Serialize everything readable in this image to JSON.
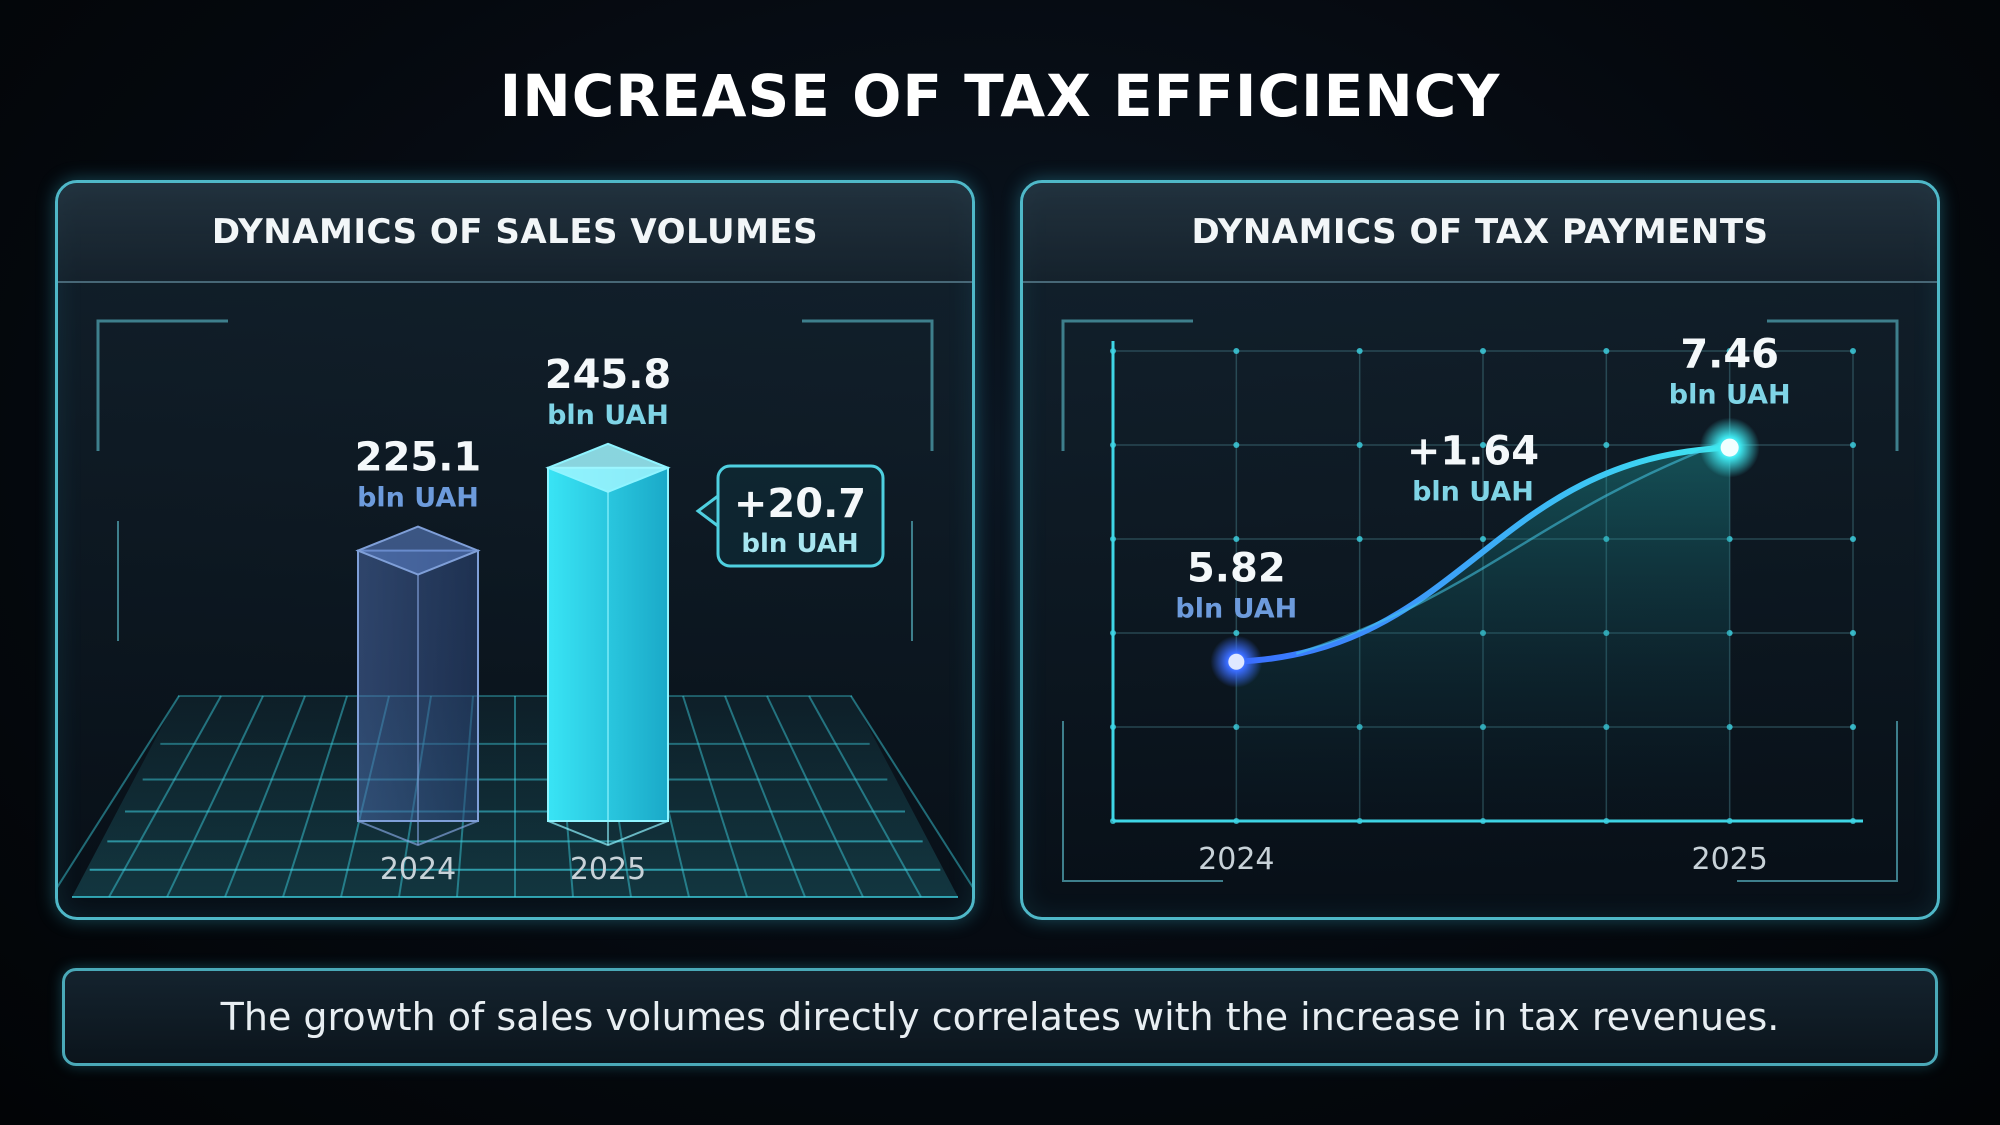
{
  "title": "INCREASE OF TAX EFFICIENCY",
  "footer": "The growth of sales volumes directly correlates with the increase in tax revenues.",
  "colors": {
    "accent": "#3fd6e6",
    "line": "#3a8dff",
    "bar2025": "#2fd2e8",
    "bar2024": "#5a7fb8",
    "text_cyan": "#7fd4e6",
    "text_blue": "#6d9bdc"
  },
  "chart_data": [
    {
      "type": "bar",
      "title": "DYNAMICS OF SALES VOLUMES",
      "categories": [
        "2024",
        "2025"
      ],
      "values": [
        225.1,
        245.8
      ],
      "value_labels": [
        "225.1",
        "245.8"
      ],
      "unit": "bln UAH",
      "delta_label": "+20.7",
      "delta_unit": "bln UAH",
      "ylim": [
        0,
        300
      ],
      "grid": true
    },
    {
      "type": "line",
      "title": "DYNAMICS OF TAX PAYMENTS",
      "x": [
        "2024",
        "2025"
      ],
      "values": [
        5.82,
        7.46
      ],
      "value_labels": [
        "5.82",
        "7.46"
      ],
      "unit": "bln UAH",
      "delta_label": "+1.64",
      "delta_unit": "bln UAH",
      "ylim": [
        4.6,
        8.2
      ],
      "grid": true
    }
  ]
}
